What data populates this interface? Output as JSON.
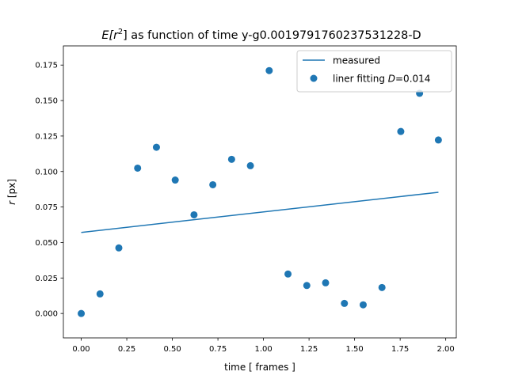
{
  "chart_data": {
    "type": "scatter",
    "title_prefix": "E[r",
    "title_sup": "2",
    "title_suffix": "] as function of time y-g0.0019791760237531228-D",
    "xlabel": "time [ frames ]",
    "ylabel_main": "r",
    "ylabel_unit": " [px]",
    "xlim": [
      -0.098,
      2.058
    ],
    "ylim": [
      -0.0172,
      0.1885
    ],
    "xticks": [
      0.0,
      0.25,
      0.5,
      0.75,
      1.0,
      1.25,
      1.5,
      1.75,
      2.0
    ],
    "xtick_labels": [
      "0.00",
      "0.25",
      "0.50",
      "0.75",
      "1.00",
      "1.25",
      "1.50",
      "1.75",
      "2.00"
    ],
    "yticks": [
      0.0,
      0.025,
      0.05,
      0.075,
      0.1,
      0.125,
      0.15,
      0.175
    ],
    "ytick_labels": [
      "0.000",
      "0.025",
      "0.050",
      "0.075",
      "0.100",
      "0.125",
      "0.150",
      "0.175"
    ],
    "grid": false,
    "legend_position": "top-right",
    "color": "#1f77b4",
    "series": [
      {
        "name": "measured",
        "kind": "line",
        "x": [
          0.0,
          1.96
        ],
        "y": [
          0.0571,
          0.0854
        ]
      },
      {
        "name_prefix": "liner fitting ",
        "name_var": "D",
        "name_suffix": "=0.014",
        "kind": "scatter",
        "x": [
          0.0,
          0.1031,
          0.2063,
          0.3094,
          0.4126,
          0.5157,
          0.6188,
          0.722,
          0.8251,
          0.9283,
          1.0314,
          1.1345,
          1.2377,
          1.3408,
          1.444,
          1.5471,
          1.6502,
          1.7534,
          1.8565,
          1.9597
        ],
        "y": [
          0.0,
          0.0138,
          0.0462,
          0.1024,
          0.1171,
          0.094,
          0.0695,
          0.0907,
          0.1086,
          0.1041,
          0.1711,
          0.0278,
          0.0197,
          0.0216,
          0.0071,
          0.0061,
          0.0183,
          0.1282,
          0.1551,
          0.1222
        ]
      }
    ]
  }
}
